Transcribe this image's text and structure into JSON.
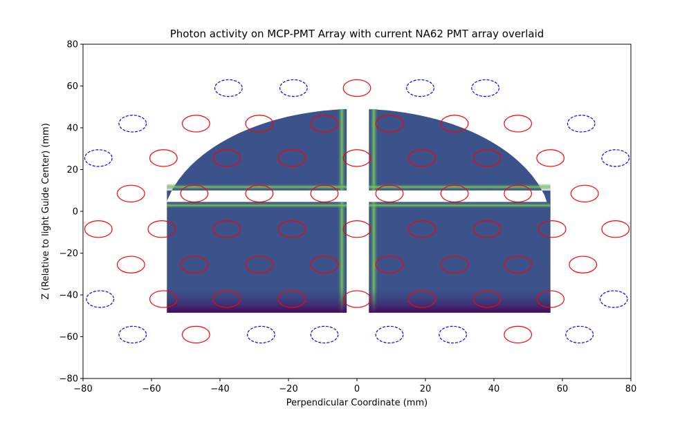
{
  "chart_data": {
    "type": "heatmap",
    "title": "Photon activity on MCP-PMT Array with current NA62 PMT array overlaid",
    "xlabel": "Perpendicular Coordinate (mm)",
    "ylabel": "Z (Relative to light Guide Center) (mm)",
    "xlim": [
      -80,
      80
    ],
    "ylim": [
      -80,
      80
    ],
    "x_ticks": [
      "−80",
      "−60",
      "−40",
      "−20",
      "0",
      "20",
      "40",
      "60",
      "80"
    ],
    "y_ticks": [
      "80",
      "60",
      "40",
      "20",
      "0",
      "−20",
      "−40",
      "−60",
      "−80"
    ],
    "x_tick_values": [
      -80,
      -60,
      -40,
      -20,
      0,
      20,
      40,
      60,
      80
    ],
    "y_tick_values": [
      80,
      60,
      40,
      20,
      0,
      -20,
      -40,
      -60,
      -80
    ],
    "grid": false,
    "colormap": "viridis",
    "colors": {
      "pmt_solid": "#ff0000",
      "pmt_dashed": "#0000ff",
      "heat_low": "#440154",
      "heat_mid": "#3b528b",
      "heat_high": "#b5de2b"
    },
    "heatmap_quadrants": [
      {
        "name": "upper-left",
        "xmin": -55.5,
        "xmax": -3,
        "ymin": 10,
        "ymax": 49
      },
      {
        "name": "upper-right",
        "xmin": 3.5,
        "xmax": 56.5,
        "ymin": 10,
        "ymax": 49
      },
      {
        "name": "lower-left",
        "xmin": -55.5,
        "xmax": -3,
        "ymin": -48.5,
        "ymax": 4.5
      },
      {
        "name": "lower-right",
        "xmin": 3.5,
        "xmax": 56.5,
        "ymin": -48.5,
        "ymax": 4.5
      }
    ],
    "pmt_rx": 4,
    "pmt_ry": 4,
    "pmts_solid": [
      {
        "x": 0,
        "y": 59
      },
      {
        "x": -47,
        "y": 42
      },
      {
        "x": -28.5,
        "y": 42
      },
      {
        "x": -9.5,
        "y": 42
      },
      {
        "x": 9.5,
        "y": 42
      },
      {
        "x": 28.5,
        "y": 42
      },
      {
        "x": 47,
        "y": 42
      },
      {
        "x": -56.5,
        "y": 25.5
      },
      {
        "x": -38,
        "y": 25.5
      },
      {
        "x": -19,
        "y": 25.5
      },
      {
        "x": 0,
        "y": 25.5
      },
      {
        "x": 19,
        "y": 25.5
      },
      {
        "x": 38,
        "y": 25.5
      },
      {
        "x": 56.5,
        "y": 25.5
      },
      {
        "x": -66,
        "y": 8.5
      },
      {
        "x": -47.5,
        "y": 8.5
      },
      {
        "x": -28.5,
        "y": 8.5
      },
      {
        "x": -9.5,
        "y": 8.5
      },
      {
        "x": 9.5,
        "y": 8.5
      },
      {
        "x": 28.5,
        "y": 8.5
      },
      {
        "x": 47,
        "y": 8.5
      },
      {
        "x": 66.5,
        "y": 8.5
      },
      {
        "x": -75.5,
        "y": -8.5
      },
      {
        "x": -57,
        "y": -8.5
      },
      {
        "x": -38,
        "y": -8.5
      },
      {
        "x": -19,
        "y": -8.5
      },
      {
        "x": 0,
        "y": -8.5
      },
      {
        "x": 19,
        "y": -8.5
      },
      {
        "x": 38,
        "y": -8.5
      },
      {
        "x": 57,
        "y": -8.5
      },
      {
        "x": 75.5,
        "y": -8.5
      },
      {
        "x": -66,
        "y": -25.5
      },
      {
        "x": -47.5,
        "y": -25.5
      },
      {
        "x": -28.5,
        "y": -25.5
      },
      {
        "x": -9.5,
        "y": -25.5
      },
      {
        "x": 9.5,
        "y": -25.5
      },
      {
        "x": 28.5,
        "y": -25.5
      },
      {
        "x": 47,
        "y": -25.5
      },
      {
        "x": 66,
        "y": -25.5
      },
      {
        "x": -56.5,
        "y": -42
      },
      {
        "x": -38,
        "y": -42
      },
      {
        "x": -19,
        "y": -42
      },
      {
        "x": 0,
        "y": -42
      },
      {
        "x": 19,
        "y": -42
      },
      {
        "x": 38,
        "y": -42
      },
      {
        "x": 56.5,
        "y": -42
      },
      {
        "x": -47,
        "y": -59
      },
      {
        "x": 47,
        "y": -59
      }
    ],
    "pmts_dashed": [
      {
        "x": -37.5,
        "y": 59
      },
      {
        "x": -18.5,
        "y": 59
      },
      {
        "x": 18.5,
        "y": 59
      },
      {
        "x": 37.5,
        "y": 59
      },
      {
        "x": -65.5,
        "y": 42
      },
      {
        "x": 65.5,
        "y": 42
      },
      {
        "x": -75.5,
        "y": 25.5
      },
      {
        "x": 75.5,
        "y": 25.5
      },
      {
        "x": -75,
        "y": -42
      },
      {
        "x": 75,
        "y": -42
      },
      {
        "x": -65.5,
        "y": -59
      },
      {
        "x": -28,
        "y": -59
      },
      {
        "x": -9.5,
        "y": -59
      },
      {
        "x": 9.5,
        "y": -59
      },
      {
        "x": 28,
        "y": -59
      },
      {
        "x": 65,
        "y": -59
      }
    ]
  }
}
